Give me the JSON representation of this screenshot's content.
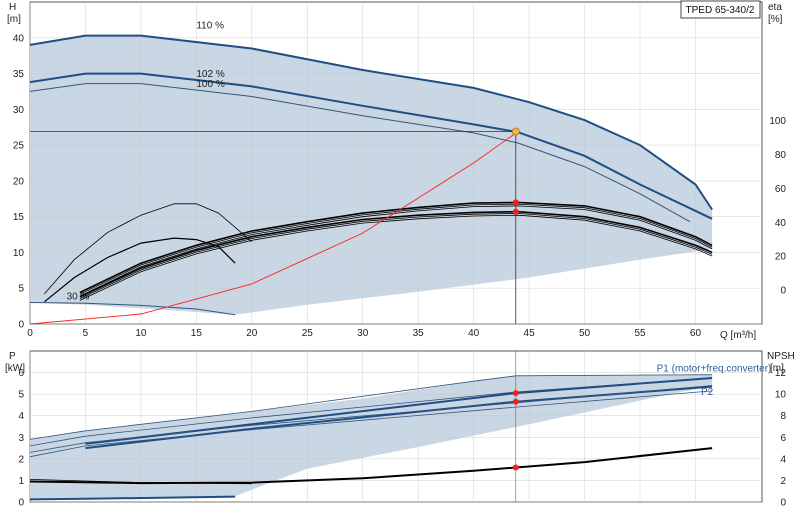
{
  "model": "TPED 65-340/2",
  "colors": {
    "envelope_fill": "#c9d6e3",
    "envelope_edge": "#2a5b93",
    "light_fill": "#e7eff8",
    "main_curve": "#1f4e85",
    "thin_curve": "#34557e",
    "black_curve": "#000000",
    "system_curve": "#ff2020",
    "op_point_top": "#f2b64a",
    "op_point_red": "#ff1a1a",
    "grid": "#c8c8c8"
  },
  "chart_data": [
    {
      "id": "head",
      "type": "line",
      "title": "",
      "xlabel": "Q [m³/h]",
      "ylabel_left": [
        "H",
        "[m]"
      ],
      "ylabel_right": [
        "eta",
        "[%]"
      ],
      "xlim": [
        0,
        66
      ],
      "ylim": [
        0,
        45
      ],
      "ylim_right": [
        -20,
        170
      ],
      "xticks": [
        0,
        5,
        10,
        15,
        20,
        25,
        30,
        35,
        40,
        45,
        50,
        55,
        60
      ],
      "yticks": [
        0,
        5,
        10,
        15,
        20,
        25,
        30,
        35,
        40
      ],
      "yticks_right": [
        0,
        20,
        40,
        60,
        80,
        100
      ],
      "grid": true,
      "envelope": {
        "upper": [
          [
            0,
            39
          ],
          [
            5,
            40.3
          ],
          [
            10,
            40.3
          ],
          [
            20,
            38.5
          ],
          [
            30,
            35.5
          ],
          [
            40,
            33
          ],
          [
            45,
            31
          ],
          [
            50,
            28.5
          ],
          [
            55,
            25
          ],
          [
            60,
            19.5
          ],
          [
            61.5,
            16
          ]
        ],
        "lower": [
          [
            61.5,
            10.5
          ],
          [
            55,
            9
          ],
          [
            45,
            6.5
          ],
          [
            35,
            4.5
          ],
          [
            25,
            2.7
          ],
          [
            18.5,
            1.3
          ],
          [
            10,
            2.2
          ],
          [
            5,
            2.7
          ],
          [
            0,
            3
          ]
        ]
      },
      "speed_curves": [
        {
          "label": "110 %",
          "label_at": [
            15,
            41.3
          ],
          "style": "main",
          "points": [
            [
              0,
              39
            ],
            [
              5,
              40.3
            ],
            [
              10,
              40.3
            ],
            [
              20,
              38.5
            ],
            [
              30,
              35.5
            ],
            [
              40,
              33
            ],
            [
              45,
              31
            ],
            [
              50,
              28.5
            ],
            [
              55,
              25
            ],
            [
              60,
              19.5
            ],
            [
              61.5,
              16
            ]
          ]
        },
        {
          "label": "102 %",
          "label_at": [
            15,
            34.5
          ],
          "style": "main",
          "points": [
            [
              0,
              33.8
            ],
            [
              5,
              35
            ],
            [
              10,
              35
            ],
            [
              20,
              33.2
            ],
            [
              30,
              30.5
            ],
            [
              40,
              27.9
            ],
            [
              44,
              26.8
            ],
            [
              50,
              23.5
            ],
            [
              55,
              19.5
            ],
            [
              61.5,
              14.7
            ]
          ]
        },
        {
          "label": "100 %",
          "label_at": [
            15,
            33.1
          ],
          "style": "thin",
          "points": [
            [
              0,
              32.5
            ],
            [
              5,
              33.6
            ],
            [
              10,
              33.6
            ],
            [
              20,
              31.8
            ],
            [
              30,
              29.1
            ],
            [
              40,
              26.7
            ],
            [
              44,
              25.3
            ],
            [
              50,
              22
            ],
            [
              55,
              18.2
            ],
            [
              59.5,
              14.3
            ]
          ]
        },
        {
          "label": "30 %",
          "label_at": [
            3.3,
            3.4
          ],
          "style": "thin",
          "points": [
            [
              0,
              3
            ],
            [
              5,
              2.9
            ],
            [
              10,
              2.6
            ],
            [
              15,
              2.1
            ],
            [
              18.5,
              1.3
            ]
          ]
        }
      ],
      "efficiency_curves": {
        "full_range": [
          {
            "label": "",
            "offset": 1.2,
            "points": [
              [
                4.5,
                4.4
              ],
              [
                10,
                8.5
              ],
              [
                15,
                11
              ],
              [
                20,
                13
              ],
              [
                25,
                14.3
              ],
              [
                30,
                15.5
              ],
              [
                35,
                16.3
              ],
              [
                40,
                16.9
              ],
              [
                44,
                17
              ],
              [
                50,
                16.5
              ],
              [
                55,
                15
              ],
              [
                60,
                12.2
              ],
              [
                61.5,
                11
              ]
            ]
          },
          {
            "label": "",
            "offset": 0,
            "points": [
              [
                4.5,
                3.8
              ],
              [
                10,
                7.8
              ],
              [
                15,
                10.3
              ],
              [
                20,
                12.2
              ],
              [
                25,
                13.5
              ],
              [
                30,
                14.6
              ],
              [
                35,
                15.2
              ],
              [
                40,
                15.6
              ],
              [
                44,
                15.7
              ],
              [
                50,
                15
              ],
              [
                55,
                13.5
              ],
              [
                60,
                11
              ],
              [
                61.5,
                10
              ]
            ]
          }
        ],
        "low_speed": [
          {
            "label": "",
            "points": [
              [
                1.3,
                4.2
              ],
              [
                4,
                9
              ],
              [
                7,
                12.8
              ],
              [
                10,
                15.2
              ],
              [
                13,
                16.8
              ],
              [
                15,
                16.8
              ],
              [
                17,
                15.5
              ],
              [
                20,
                11.5
              ]
            ]
          },
          {
            "label": "",
            "points": [
              [
                1.3,
                3.1
              ],
              [
                4,
                6.5
              ],
              [
                7,
                9.3
              ],
              [
                10,
                11.3
              ],
              [
                13,
                12
              ],
              [
                15,
                11.8
              ],
              [
                17,
                10.8
              ],
              [
                18.5,
                8.5
              ]
            ]
          }
        ]
      },
      "system_curve": {
        "label": "",
        "points": [
          [
            0,
            0
          ],
          [
            10,
            1.4
          ],
          [
            20,
            5.6
          ],
          [
            30,
            12.7
          ],
          [
            40,
            22.5
          ],
          [
            44,
            26.9
          ]
        ]
      },
      "operating_point": {
        "q": 43.8,
        "h": 26.9
      },
      "efficiency_points": [
        [
          43.8,
          17
        ],
        [
          43.8,
          15.7
        ]
      ]
    },
    {
      "id": "power",
      "type": "line",
      "title": "",
      "xlabel": "",
      "ylabel_left": [
        "P",
        "[kW]"
      ],
      "ylabel_right": [
        "NPSH",
        "[m]"
      ],
      "xlim": [
        0,
        66
      ],
      "ylim": [
        0,
        7
      ],
      "ylim_right": [
        0,
        14
      ],
      "yticks": [
        0,
        1,
        2,
        3,
        4,
        5,
        6
      ],
      "yticks_right": [
        0,
        2,
        4,
        6,
        8,
        10,
        12
      ],
      "grid": true,
      "envelope": {
        "upper": [
          [
            0,
            2.9
          ],
          [
            5,
            3.3
          ],
          [
            10,
            3.6
          ],
          [
            20,
            4.2
          ],
          [
            30,
            4.8
          ],
          [
            40,
            5.6
          ],
          [
            43.8,
            5.85
          ],
          [
            50,
            5.9
          ],
          [
            61.5,
            5.9
          ]
        ],
        "lower": [
          [
            61.5,
            5.4
          ],
          [
            55,
            4.7
          ],
          [
            45,
            3.6
          ],
          [
            35,
            2.55
          ],
          [
            25,
            1.55
          ],
          [
            18.5,
            0.28
          ],
          [
            10,
            0.2
          ],
          [
            5,
            0.15
          ],
          [
            0,
            0.12
          ]
        ]
      },
      "series_labels": [
        {
          "label": "P1 (motor+freq.converter)",
          "anchor": [
            56.5,
            6.05
          ]
        },
        {
          "label": "P2",
          "anchor": [
            60.5,
            4.95
          ]
        }
      ],
      "power_curves": [
        {
          "style": "thin",
          "points": [
            [
              0,
              2.9
            ],
            [
              5,
              3.3
            ],
            [
              20,
              4.2
            ],
            [
              40,
              5.6
            ],
            [
              43.8,
              5.85
            ],
            [
              61.5,
              5.9
            ]
          ]
        },
        {
          "style": "thin",
          "points": [
            [
              0,
              2.6
            ],
            [
              5,
              3.05
            ],
            [
              20,
              3.9
            ],
            [
              43.8,
              5.1
            ],
            [
              61.5,
              5.75
            ]
          ]
        },
        {
          "style": "main",
          "points": [
            [
              5,
              2.7
            ],
            [
              20,
              3.6
            ],
            [
              43.8,
              5.05
            ],
            [
              61.5,
              5.75
            ]
          ]
        },
        {
          "style": "main",
          "points": [
            [
              5,
              2.5
            ],
            [
              20,
              3.4
            ],
            [
              43.8,
              4.65
            ],
            [
              61.5,
              5.35
            ]
          ]
        },
        {
          "style": "thin",
          "points": [
            [
              0,
              2.3
            ],
            [
              5,
              2.75
            ],
            [
              20,
              3.55
            ],
            [
              43.8,
              4.6
            ],
            [
              61.5,
              5.4
            ]
          ]
        },
        {
          "style": "thin",
          "points": [
            [
              0,
              2.1
            ],
            [
              5,
              2.6
            ],
            [
              20,
              3.35
            ],
            [
              43.8,
              4.4
            ],
            [
              61.5,
              5.15
            ]
          ]
        },
        {
          "style": "main",
          "points": [
            [
              0,
              0.12
            ],
            [
              5,
              0.15
            ],
            [
              18.5,
              0.25
            ]
          ]
        }
      ],
      "npsh_curve": {
        "points": [
          [
            0,
            1.9
          ],
          [
            10,
            1.75
          ],
          [
            20,
            1.8
          ],
          [
            30,
            2.2
          ],
          [
            40,
            2.9
          ],
          [
            43.8,
            3.2
          ],
          [
            50,
            3.7
          ],
          [
            61.5,
            5
          ]
        ]
      },
      "npsh_extra": {
        "points": [
          [
            0,
            2.1
          ],
          [
            10,
            1.8
          ],
          [
            20,
            1.7
          ]
        ]
      },
      "operating_points": [
        [
          43.8,
          5.05
        ],
        [
          43.8,
          4.65
        ],
        [
          43.8,
          1.6
        ]
      ]
    }
  ]
}
